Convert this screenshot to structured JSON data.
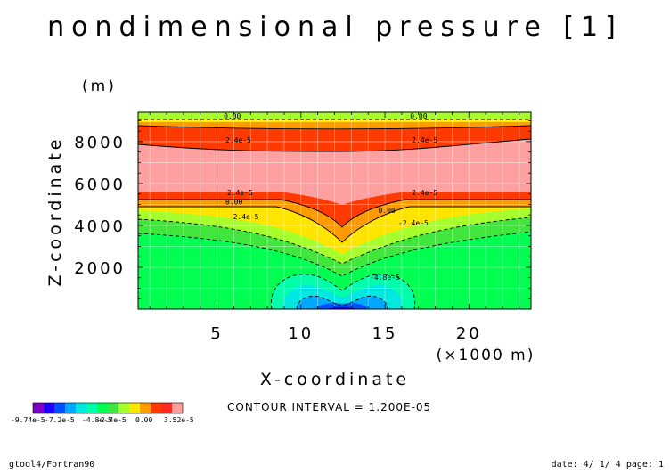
{
  "chart_data": {
    "type": "contour",
    "title": "nondimensional pressure [1]",
    "xlabel": "X-coordinate",
    "ylabel": "Z-coordinate",
    "x_unit": "(×1000 m)",
    "y_unit": "(m)",
    "xlim": [
      0.3,
      23.7
    ],
    "ylim": [
      0,
      9400
    ],
    "x_ticks": [
      5,
      10,
      15,
      20
    ],
    "y_ticks": [
      2000,
      4000,
      6000,
      8000
    ],
    "contour_interval_text": "CONTOUR INTERVAL = 1.200E-05",
    "contour_labels": [
      {
        "text": "0.00",
        "x": 5.4,
        "y": 9100
      },
      {
        "text": "0.00",
        "x": 16.5,
        "y": 9100
      },
      {
        "text": "2.4e-5",
        "x": 5.5,
        "y": 7950
      },
      {
        "text": "2.4e-5",
        "x": 16.6,
        "y": 7950
      },
      {
        "text": "2.4e-5",
        "x": 5.6,
        "y": 5450
      },
      {
        "text": "2.4e-5",
        "x": 16.6,
        "y": 5450
      },
      {
        "text": "0.00",
        "x": 5.5,
        "y": 5000
      },
      {
        "text": "0.00",
        "x": 14.6,
        "y": 4600
      },
      {
        "text": "-2.4e-5",
        "x": 5.7,
        "y": 4300
      },
      {
        "text": "-2.4e-5",
        "x": 15.8,
        "y": 4000
      },
      {
        "text": "-4.8e-5",
        "x": 14.1,
        "y": 1400
      }
    ],
    "colorbar": {
      "colors": [
        "#7a00c8",
        "#1c00ff",
        "#0050ff",
        "#00a8ff",
        "#00e8e0",
        "#00ffaa",
        "#00ff50",
        "#40e63c",
        "#a6ff2a",
        "#ffe400",
        "#ff9b00",
        "#ff3a00",
        "#ff2a22",
        "#ffa0a0"
      ],
      "labels": [
        "-9.74e-5",
        "-7.2e-5",
        "-4.8e-5",
        "-2.4e-5",
        "0.00",
        "3.52e-5"
      ]
    }
  },
  "footer": {
    "left": "gtool4/Fortran90",
    "right": "date: 4/ 1/ 4 page: 1"
  }
}
